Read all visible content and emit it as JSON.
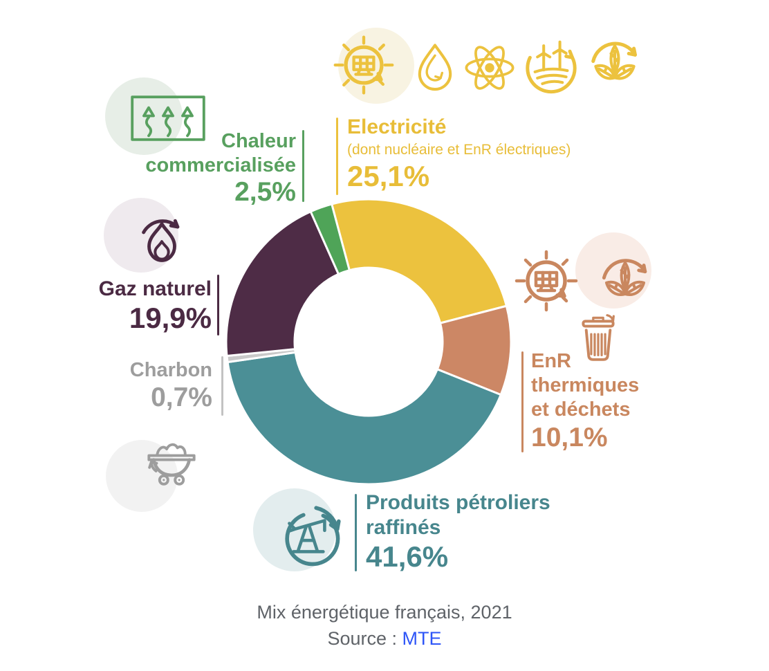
{
  "chart_data": {
    "type": "donut",
    "title": "Mix énergétique français, 2021",
    "source": "Source : MTE",
    "unit": "%",
    "rotation_deg": -15,
    "inner_radius_ratio": 0.52,
    "legend_position": "around-chart",
    "series": [
      {
        "id": "electricite",
        "label": "Electricité",
        "sublabel": "(dont nucléaire et EnR électriques)",
        "value": 25.1,
        "display": "25,1%",
        "color": "#ecc23e"
      },
      {
        "id": "enr-thermiques",
        "label": "EnR thermiques et déchets",
        "sublabel": "",
        "value": 10.1,
        "display": "10,1%",
        "color": "#cc8765"
      },
      {
        "id": "produits-petroliers",
        "label": "Produits pétroliers raffinés",
        "sublabel": "",
        "value": 41.6,
        "display": "41,6%",
        "color": "#4b8f96"
      },
      {
        "id": "charbon",
        "label": "Charbon",
        "sublabel": "",
        "value": 0.7,
        "display": "0,7%",
        "color": "#c9c9c9"
      },
      {
        "id": "gaz-naturel",
        "label": "Gaz naturel",
        "sublabel": "",
        "value": 19.9,
        "display": "19,9%",
        "color": "#4e2c46"
      },
      {
        "id": "chaleur",
        "label": "Chaleur commercialisée",
        "sublabel": "",
        "value": 2.5,
        "display": "2,5%",
        "color": "#4fa458"
      }
    ]
  },
  "labels": {
    "electricite": {
      "name": "Electricité",
      "sub": "(dont nucléaire et EnR électriques)",
      "pct": "25,1%"
    },
    "chaleur": {
      "line1": "Chaleur",
      "line2": "commercialisée",
      "pct": "2,5%"
    },
    "gaz": {
      "name": "Gaz naturel",
      "pct": "19,9%"
    },
    "charbon": {
      "name": "Charbon",
      "pct": "0,7%"
    },
    "enr": {
      "line1": "EnR",
      "line2": "thermiques",
      "line3": "et déchets",
      "pct": "10,1%"
    },
    "produits": {
      "line1": "Produits pétroliers",
      "line2": "raffinés",
      "pct": "41,6%"
    }
  },
  "icons": {
    "electricite": [
      "sun-solar",
      "water-drop",
      "atom",
      "wind-turbines",
      "leaves-cycle"
    ],
    "chaleur": [
      "heat-vents"
    ],
    "gaz": [
      "flame-cycle"
    ],
    "charbon": [
      "coal-cart"
    ],
    "enr": [
      "sun-solar",
      "leaves-cycle",
      "trash-can"
    ],
    "produits": [
      "oil-pump"
    ]
  },
  "caption": {
    "title": "Mix énergétique français, 2021",
    "source_prefix": "Source : ",
    "source_link": "MTE"
  },
  "colors": {
    "electricite": "#ecc23e",
    "enr_thermiques": "#cc8765",
    "produits_petroliers": "#4b8f96",
    "charbon": "#c9c9c9",
    "gaz_naturel": "#4e2c46",
    "chaleur": "#4fa458",
    "caption_text": "#5f6368",
    "source_link": "#2e55f7"
  }
}
